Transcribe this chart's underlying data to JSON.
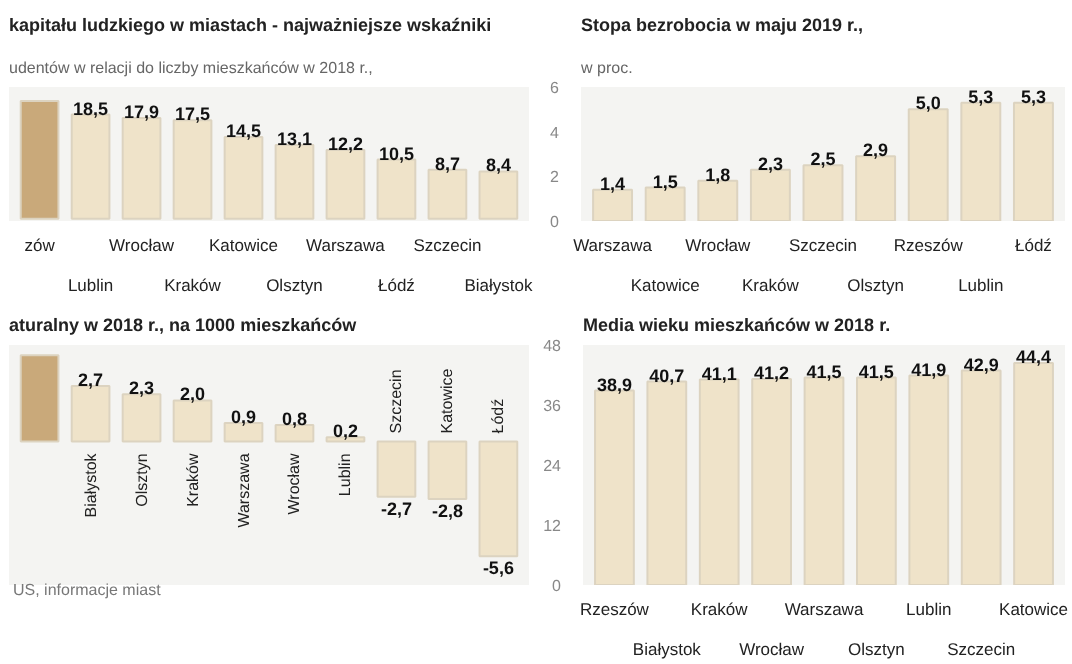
{
  "chart_data": [
    {
      "type": "bar",
      "title": "kapitału ludzkiego w miastach - najważniejsze wskaźniki",
      "subtitle": "udentów w relacji do liczby mieszkańców  w 2018 r.,",
      "categories": [
        "zów",
        "Lublin",
        "Wrocław",
        "Kraków",
        "Katowice",
        "Olsztyn",
        "Warszawa",
        "Łódź",
        "Szczecin",
        "Białystok"
      ],
      "values": [
        20.9,
        18.5,
        17.9,
        17.5,
        14.5,
        13.1,
        12.2,
        10.5,
        8.7,
        8.4
      ],
      "value_labels": [
        null,
        "18,5",
        "17,9",
        "17,5",
        "14,5",
        "13,1",
        "12,2",
        "10,5",
        "8,7",
        "8,4"
      ],
      "colors": [
        "#c9a97a",
        "#efe3c9",
        "#efe3c9",
        "#efe3c9",
        "#efe3c9",
        "#efe3c9",
        "#efe3c9",
        "#efe3c9",
        "#efe3c9",
        "#efe3c9"
      ]
    },
    {
      "type": "bar",
      "title": "Stopa bezrobocia w maju 2019 r.,",
      "subtitle": "w proc.",
      "categories": [
        "Warszawa",
        "Katowice",
        "Wrocław",
        "Kraków",
        "Szczecin",
        "Olsztyn",
        "Rzeszów",
        "Lublin",
        "Łódź"
      ],
      "values": [
        1.4,
        1.5,
        1.8,
        2.3,
        2.5,
        2.9,
        5.0,
        5.3,
        5.3
      ],
      "value_labels": [
        "1,4",
        "1,5",
        "1,8",
        "2,3",
        "2,5",
        "2,9",
        "5,0",
        "5,3",
        "5,3"
      ],
      "color": "#efe3c9",
      "ylim": [
        0,
        6
      ],
      "yticks": [
        0,
        2,
        4,
        6
      ]
    },
    {
      "type": "bar",
      "title": "aturalny w 2018 r., na 1000 mieszkańców",
      "annotations": [
        "US, informacje miast"
      ],
      "categories": [
        null,
        "Białystok",
        "Olsztyn",
        "Kraków",
        "Warszawa",
        "Wrocław",
        "Lublin",
        "Szczecin",
        "Katowice",
        "Łódź"
      ],
      "values": [
        4.2,
        2.7,
        2.3,
        2.0,
        0.9,
        0.8,
        0.2,
        -2.7,
        -2.8,
        -5.6
      ],
      "value_labels": [
        null,
        "2,7",
        "2,3",
        "2,0",
        "0,9",
        "0,8",
        "0,2",
        "-2,7",
        "-2,8",
        "-5,6"
      ],
      "colors": [
        "#c9a97a",
        "#efe3c9",
        "#efe3c9",
        "#efe3c9",
        "#efe3c9",
        "#efe3c9",
        "#efe3c9",
        "#efe3c9",
        "#efe3c9",
        "#efe3c9"
      ]
    },
    {
      "type": "bar",
      "title": "Media wieku mieszkańców w 2018 r.",
      "categories": [
        "Rzeszów",
        "Białystok",
        "Kraków",
        "Wrocław",
        "Warszawa",
        "Olsztyn",
        "Lublin",
        "Szczecin",
        "Katowice"
      ],
      "values": [
        38.9,
        40.7,
        41.1,
        41.2,
        41.5,
        41.5,
        41.9,
        42.9,
        44.4
      ],
      "value_labels": [
        "38,9",
        "40,7",
        "41,1",
        "41,2",
        "41,5",
        "41,5",
        "41,9",
        "42,9",
        "44,4"
      ],
      "color": "#efe3c9",
      "ylim": [
        0,
        48
      ],
      "yticks": [
        0,
        12,
        24,
        36,
        48
      ]
    }
  ]
}
